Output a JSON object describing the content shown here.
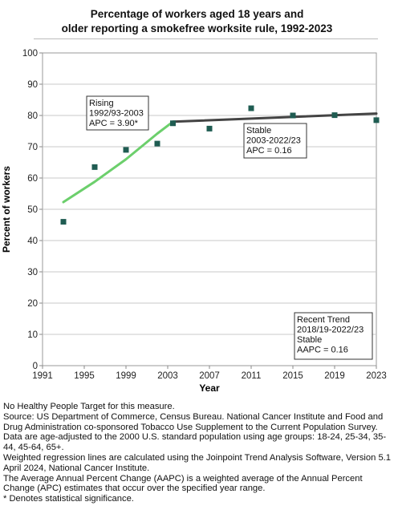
{
  "chart_data": {
    "type": "scatter",
    "title": "Percentage of workers aged 18 years and older reporting a smokefree worksite rule, 1992-2023",
    "title_lines": [
      "Percentage of workers aged 18 years and",
      "older reporting a smokefree worksite rule, 1992-2023"
    ],
    "xlabel": "Year",
    "ylabel": "Percent of workers",
    "xlim": [
      1991,
      2023
    ],
    "ylim": [
      0,
      100
    ],
    "xticks": [
      1991,
      1995,
      1999,
      2003,
      2007,
      2011,
      2015,
      2019,
      2023
    ],
    "yticks": [
      0,
      10,
      20,
      30,
      40,
      50,
      60,
      70,
      80,
      90,
      100
    ],
    "grid": true,
    "point_color": "#1f5c52",
    "points": [
      {
        "x": 1993,
        "y": 46.0
      },
      {
        "x": 1996,
        "y": 63.5
      },
      {
        "x": 1999,
        "y": 69.0
      },
      {
        "x": 2002,
        "y": 71.0
      },
      {
        "x": 2003.5,
        "y": 77.5
      },
      {
        "x": 2007,
        "y": 75.8
      },
      {
        "x": 2011,
        "y": 82.3
      },
      {
        "x": 2015,
        "y": 80.0
      },
      {
        "x": 2019,
        "y": 80.1
      },
      {
        "x": 2023,
        "y": 78.5
      }
    ],
    "trend_lines": [
      {
        "name": "Rising",
        "color": "#6ccf6c",
        "x": [
          1993,
          1996,
          1999,
          2002,
          2003.5
        ],
        "y": [
          52.3,
          58.8,
          66.0,
          74.2,
          78.0
        ]
      },
      {
        "name": "Stable",
        "color": "#444444",
        "x": [
          2003.5,
          2023
        ],
        "y": [
          78.0,
          80.6
        ]
      }
    ],
    "annotations": [
      {
        "lines": [
          "Rising",
          "1992/93-2003",
          "APC =  3.90*"
        ]
      },
      {
        "lines": [
          "Stable",
          "2003-2022/23",
          "APC =  0.16"
        ]
      },
      {
        "lines": [
          "Recent Trend",
          "2018/19-2022/23",
          "Stable",
          "AAPC =  0.16"
        ]
      }
    ]
  },
  "notes": [
    "No Healthy People Target for this measure.",
    "Source: US Department of Commerce, Census Bureau. National Cancer Institute and Food and Drug Administration co-sponsored Tobacco Use Supplement to the Current Population Survey.",
    "Data are age-adjusted to the 2000 U.S. standard population using age groups: 18-24, 25-34, 35-44, 45-64, 65+.",
    "Weighted regression lines are calculated using the Joinpoint Trend Analysis Software, Version 5.1 April 2024, National Cancer Institute.",
    "The Average Annual Percent Change (AAPC) is a weighted average of the Annual Percent Change (APC) estimates that occur over the specified year range.",
    "* Denotes statistical significance."
  ]
}
